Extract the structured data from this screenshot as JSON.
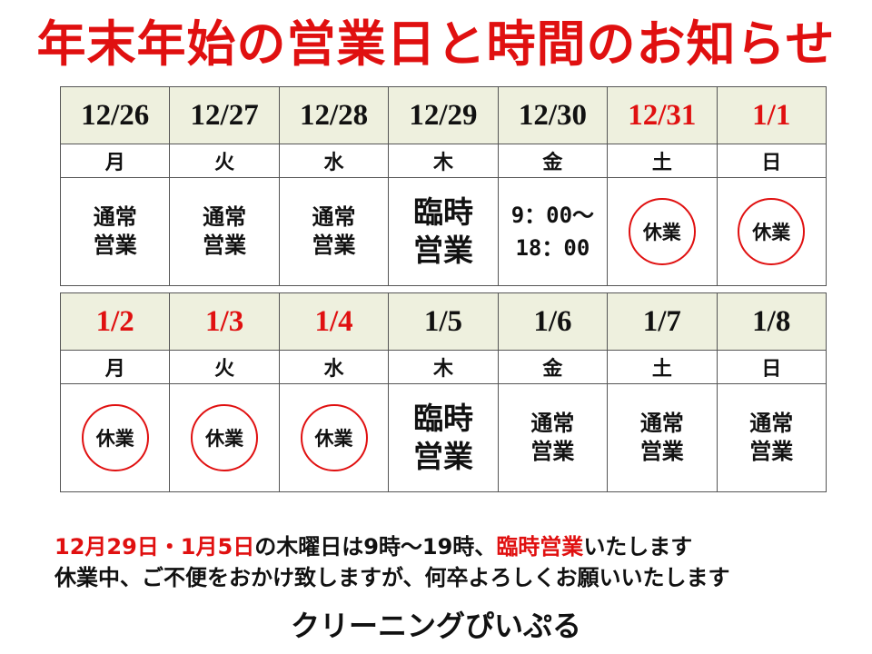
{
  "title": "年末年始の営業日と時間のお知らせ",
  "colors": {
    "red": "#e01010",
    "header_bg": "#eef0de",
    "text": "#111111"
  },
  "weeks": [
    {
      "days": [
        {
          "date": "12/26",
          "weekday": "月",
          "status": "normal",
          "status_text": "通常営業",
          "holiday": false
        },
        {
          "date": "12/27",
          "weekday": "火",
          "status": "normal",
          "status_text": "通常営業",
          "holiday": false
        },
        {
          "date": "12/28",
          "weekday": "水",
          "status": "normal",
          "status_text": "通常営業",
          "holiday": false
        },
        {
          "date": "12/29",
          "weekday": "木",
          "status": "special",
          "status_text": "臨時営業",
          "holiday": false
        },
        {
          "date": "12/30",
          "weekday": "金",
          "status": "hours",
          "status_text": "9：00～18：00",
          "holiday": false
        },
        {
          "date": "12/31",
          "weekday": "土",
          "status": "closed",
          "status_text": "休業",
          "holiday": true
        },
        {
          "date": "1/1",
          "weekday": "日",
          "status": "closed",
          "status_text": "休業",
          "holiday": true
        }
      ]
    },
    {
      "days": [
        {
          "date": "1/2",
          "weekday": "月",
          "status": "closed",
          "status_text": "休業",
          "holiday": true
        },
        {
          "date": "1/3",
          "weekday": "火",
          "status": "closed",
          "status_text": "休業",
          "holiday": true
        },
        {
          "date": "1/4",
          "weekday": "水",
          "status": "closed",
          "status_text": "休業",
          "holiday": true
        },
        {
          "date": "1/5",
          "weekday": "木",
          "status": "special",
          "status_text": "臨時営業",
          "holiday": false
        },
        {
          "date": "1/6",
          "weekday": "金",
          "status": "normal",
          "status_text": "通常営業",
          "holiday": false
        },
        {
          "date": "1/7",
          "weekday": "土",
          "status": "normal",
          "status_text": "通常営業",
          "holiday": false
        },
        {
          "date": "1/8",
          "weekday": "日",
          "status": "normal",
          "status_text": "通常営業",
          "holiday": false
        }
      ]
    }
  ],
  "notice": {
    "line1": {
      "dates": "12月29日・1月5日",
      "middle": "の木曜日は9時～19時、",
      "highlight": "臨時営業",
      "end": "いたします"
    },
    "line2": "休業中、ご不便をおかけ致しますが、何卒よろしくお願いいたします"
  },
  "shop_name": "クリーニングぴいぷる"
}
